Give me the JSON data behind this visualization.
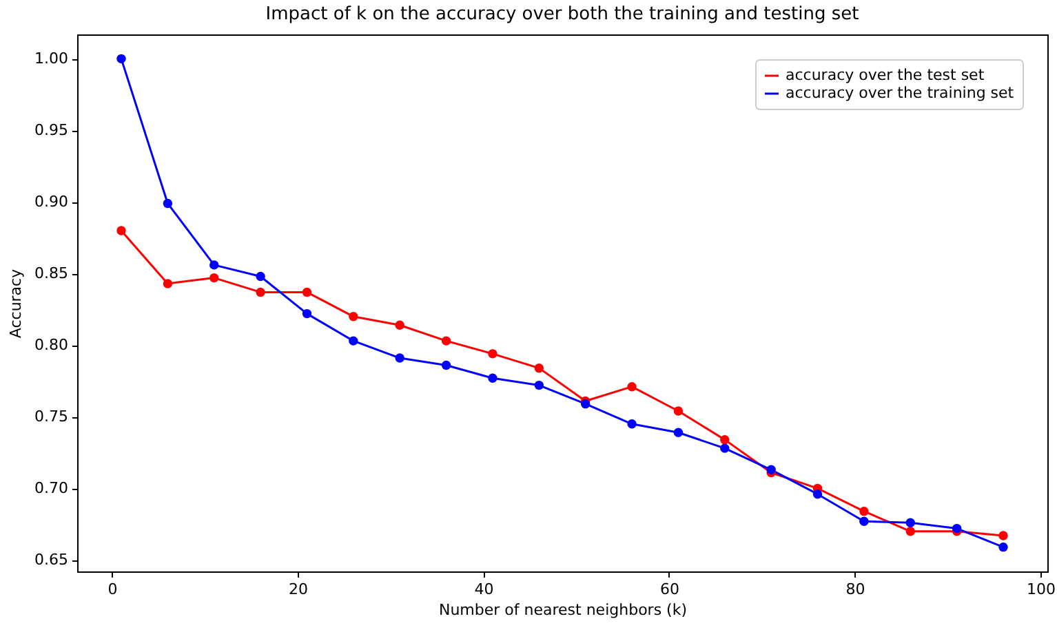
{
  "chart_data": {
    "type": "line",
    "title": "Impact of k on the accuracy over both the training and testing set",
    "xlabel": "Number of nearest neighbors (k)",
    "ylabel": "Accuracy",
    "x": [
      1,
      6,
      11,
      16,
      21,
      26,
      31,
      36,
      41,
      46,
      51,
      56,
      61,
      66,
      71,
      76,
      81,
      86,
      91,
      96
    ],
    "series": [
      {
        "name": "accuracy over the test set",
        "color": "#ff0000",
        "values": [
          0.88,
          0.843,
          0.847,
          0.837,
          0.837,
          0.82,
          0.814,
          0.803,
          0.794,
          0.784,
          0.761,
          0.771,
          0.754,
          0.734,
          0.711,
          0.7,
          0.684,
          0.67,
          0.67,
          0.667
        ]
      },
      {
        "name": "accuracy over the training set",
        "color": "#0000ff",
        "values": [
          1.0,
          0.899,
          0.856,
          0.848,
          0.822,
          0.803,
          0.791,
          0.786,
          0.777,
          0.772,
          0.759,
          0.745,
          0.739,
          0.728,
          0.713,
          0.696,
          0.677,
          0.676,
          0.672,
          0.659
        ]
      }
    ],
    "xlim": [
      -3.75,
      100.75
    ],
    "ylim": [
      0.642,
      1.017
    ],
    "xticks": [
      0,
      20,
      40,
      60,
      80,
      100
    ],
    "yticks": [
      0.65,
      {
        "value": 0.7,
        "label": "0.70"
      },
      0.75,
      {
        "value": 0.8,
        "label": "0.80"
      },
      0.85,
      {
        "value": 0.9,
        "label": "0.90"
      },
      0.95,
      {
        "value": 1,
        "label": "1.00"
      }
    ],
    "grid": false,
    "legend": "top right",
    "marker": "circle",
    "line_style": "solid"
  }
}
